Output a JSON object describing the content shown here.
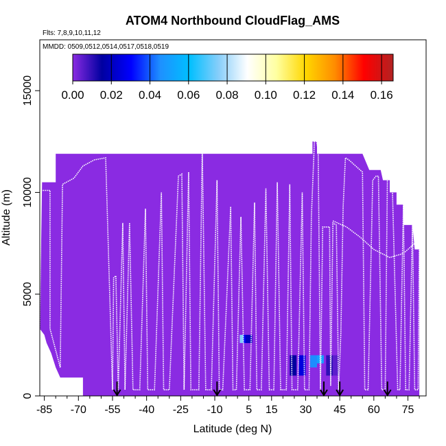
{
  "chart_data": {
    "type": "heatmap",
    "title": "ATOM4 Northbound CloudFlag_AMS",
    "subtitle_flights": "Flts: 7,8,9,10,11,12",
    "subtitle_dates": "MMDD: 0509,0512,0514,0517,0518,0519",
    "xlabel": "Latitude (deg N)",
    "ylabel": "Altitude (m)",
    "xlim": [
      -87,
      83
    ],
    "ylim": [
      0,
      17500
    ],
    "x_ticks": [
      -85,
      -70,
      -55,
      -40,
      -25,
      -10,
      5,
      15,
      30,
      45,
      60,
      75
    ],
    "x_tick_labels": [
      "-85",
      "-70",
      "-55",
      "-40",
      "-25",
      "-10",
      "5",
      "15",
      "30",
      "45",
      "60",
      "75"
    ],
    "x_minor_ticks": [
      -80,
      -75,
      -65,
      -60,
      -50,
      -45,
      -35,
      -30,
      -20,
      -15,
      -5,
      0,
      10,
      20,
      25,
      35,
      40,
      50,
      55,
      65,
      70,
      80
    ],
    "y_ticks": [
      0,
      5000,
      10000,
      15000
    ],
    "y_tick_labels": [
      "0",
      "5000",
      "10000",
      "15000"
    ],
    "colorbar": {
      "min": 0,
      "max": 0.166,
      "ticks": [
        0.0,
        0.02,
        0.04,
        0.06,
        0.08,
        0.1,
        0.12,
        0.14,
        0.16
      ],
      "tick_labels": [
        "0.00",
        "0.02",
        "0.04",
        "0.06",
        "0.08",
        "0.10",
        "0.12",
        "0.14",
        "0.16"
      ],
      "colors": [
        "#8a2be2",
        "#0000a0",
        "#0000ff",
        "#1e90ff",
        "#00bfff",
        "#87cefa",
        "#ffffff",
        "#ffffa0",
        "#ffd700",
        "#ff8c00",
        "#ff0000",
        "#b22222"
      ]
    },
    "background_value": 0.0,
    "envelope": [
      [
        -87,
        3300
      ],
      [
        -86,
        10500
      ],
      [
        -80,
        10500
      ],
      [
        -80,
        11900
      ],
      [
        -75,
        11900
      ],
      [
        -75,
        11900
      ],
      [
        -67,
        11900
      ],
      [
        -60,
        11900
      ],
      [
        -50,
        11900
      ],
      [
        -40,
        11900
      ],
      [
        -25,
        11900
      ],
      [
        -10,
        11900
      ],
      [
        0,
        11900
      ],
      [
        10,
        11900
      ],
      [
        20,
        11900
      ],
      [
        30,
        11900
      ],
      [
        33,
        11900
      ],
      [
        33,
        12500
      ],
      [
        35,
        12500
      ],
      [
        35,
        11900
      ],
      [
        45,
        11900
      ],
      [
        55,
        11900
      ],
      [
        58,
        11100
      ],
      [
        63,
        11100
      ],
      [
        64,
        10600
      ],
      [
        67,
        10600
      ],
      [
        67,
        10000
      ],
      [
        70,
        10000
      ],
      [
        70,
        9400
      ],
      [
        73,
        9400
      ],
      [
        73,
        8400
      ],
      [
        77,
        8400
      ],
      [
        78,
        7200
      ],
      [
        80,
        7200
      ],
      [
        80,
        0
      ],
      [
        -68,
        0
      ],
      [
        -68,
        900
      ],
      [
        -78,
        900
      ],
      [
        -80,
        1400
      ],
      [
        -82,
        2100
      ],
      [
        -84,
        2600
      ],
      [
        -85,
        3000
      ]
    ],
    "cloud_patches": [
      {
        "lat": 2.5,
        "alt_lo": 2600,
        "alt_hi": 3000,
        "value": 0.075
      },
      {
        "lat": 4.0,
        "alt_lo": 2600,
        "alt_hi": 3000,
        "value": 0.03
      },
      {
        "lat": 5.0,
        "alt_lo": 2600,
        "alt_hi": 3000,
        "value": 0.02
      },
      {
        "lat": 24.5,
        "alt_lo": 1000,
        "alt_hi": 2000,
        "value": 0.015
      },
      {
        "lat": 28.5,
        "alt_lo": 1000,
        "alt_hi": 2000,
        "value": 0.025
      },
      {
        "lat": 33.5,
        "alt_lo": 1400,
        "alt_hi": 2000,
        "value": 0.045
      },
      {
        "lat": 36.5,
        "alt_lo": 1600,
        "alt_hi": 2000,
        "value": 0.05
      },
      {
        "lat": 40.5,
        "alt_lo": 1000,
        "alt_hi": 2000,
        "value": 0.01
      },
      {
        "lat": 43.5,
        "alt_lo": 1000,
        "alt_hi": 2000,
        "value": 0.005
      }
    ],
    "flight_track": [
      [
        -87,
        3300
      ],
      [
        -86.5,
        10100
      ],
      [
        -82.5,
        10100
      ],
      [
        -82.5,
        3300
      ],
      [
        -78,
        1400
      ],
      [
        -77,
        10400
      ],
      [
        -72,
        10700
      ],
      [
        -68,
        11300
      ],
      [
        -63,
        11600
      ],
      [
        -58,
        11700
      ],
      [
        -55,
        300
      ],
      [
        -54.5,
        5800
      ],
      [
        -53.5,
        5900
      ],
      [
        -52.5,
        300
      ],
      [
        -50.5,
        8500
      ],
      [
        -49.5,
        300
      ],
      [
        -47.5,
        8500
      ],
      [
        -46,
        300
      ],
      [
        -43,
        300
      ],
      [
        -40.5,
        9200
      ],
      [
        -39.5,
        300
      ],
      [
        -36.5,
        300
      ],
      [
        -33.5,
        10000
      ],
      [
        -32.5,
        300
      ],
      [
        -30,
        300
      ],
      [
        -26,
        10800
      ],
      [
        -24.5,
        10900
      ],
      [
        -23.5,
        300
      ],
      [
        -21.5,
        11000
      ],
      [
        -20.5,
        300
      ],
      [
        -17,
        300
      ],
      [
        -15.5,
        12200
      ],
      [
        -14,
        300
      ],
      [
        -11.5,
        300
      ],
      [
        -9,
        10600
      ],
      [
        -8,
        300
      ],
      [
        -6.5,
        300
      ],
      [
        -3,
        9300
      ],
      [
        -2,
        300
      ],
      [
        -0.5,
        300
      ],
      [
        1.5,
        8800
      ],
      [
        3,
        300
      ],
      [
        5.5,
        300
      ],
      [
        7.5,
        9500
      ],
      [
        8.5,
        300
      ],
      [
        10.5,
        300
      ],
      [
        12.5,
        10200
      ],
      [
        14,
        300
      ],
      [
        16,
        300
      ],
      [
        17.5,
        10500
      ],
      [
        19,
        300
      ],
      [
        21.5,
        300
      ],
      [
        23,
        10400
      ],
      [
        24,
        300
      ],
      [
        26.5,
        300
      ],
      [
        28.5,
        10000
      ],
      [
        29.5,
        300
      ],
      [
        31.5,
        300
      ],
      [
        32.5,
        8800
      ],
      [
        34,
        12900
      ],
      [
        35.5,
        12100
      ],
      [
        36.5,
        300
      ],
      [
        37.5,
        8300
      ],
      [
        40.5,
        8300
      ],
      [
        41,
        500
      ],
      [
        42,
        8500
      ],
      [
        43.5,
        8400
      ],
      [
        44.5,
        300
      ],
      [
        45.5,
        3100
      ],
      [
        46.5,
        9300
      ],
      [
        47.5,
        11700
      ],
      [
        49,
        11600
      ],
      [
        55,
        11000
      ],
      [
        56,
        300
      ],
      [
        57.5,
        300
      ],
      [
        59.5,
        10600
      ],
      [
        61,
        10800
      ],
      [
        62,
        10800
      ],
      [
        63.5,
        300
      ],
      [
        65,
        300
      ],
      [
        66,
        11100
      ],
      [
        68,
        10900
      ],
      [
        70.5,
        300
      ],
      [
        71.5,
        300
      ],
      [
        73,
        9400
      ],
      [
        74,
        300
      ],
      [
        75.5,
        300
      ],
      [
        77,
        8400
      ],
      [
        78,
        300
      ],
      [
        79.5,
        300
      ],
      [
        80,
        7600
      ]
    ],
    "secondary_track": [
      [
        42,
        8600
      ],
      [
        48,
        8300
      ],
      [
        54,
        7800
      ],
      [
        60,
        7200
      ],
      [
        67,
        6800
      ],
      [
        73,
        7000
      ],
      [
        79,
        7600
      ]
    ],
    "sounding_markers": [
      -53,
      -9,
      38,
      45,
      66
    ]
  }
}
